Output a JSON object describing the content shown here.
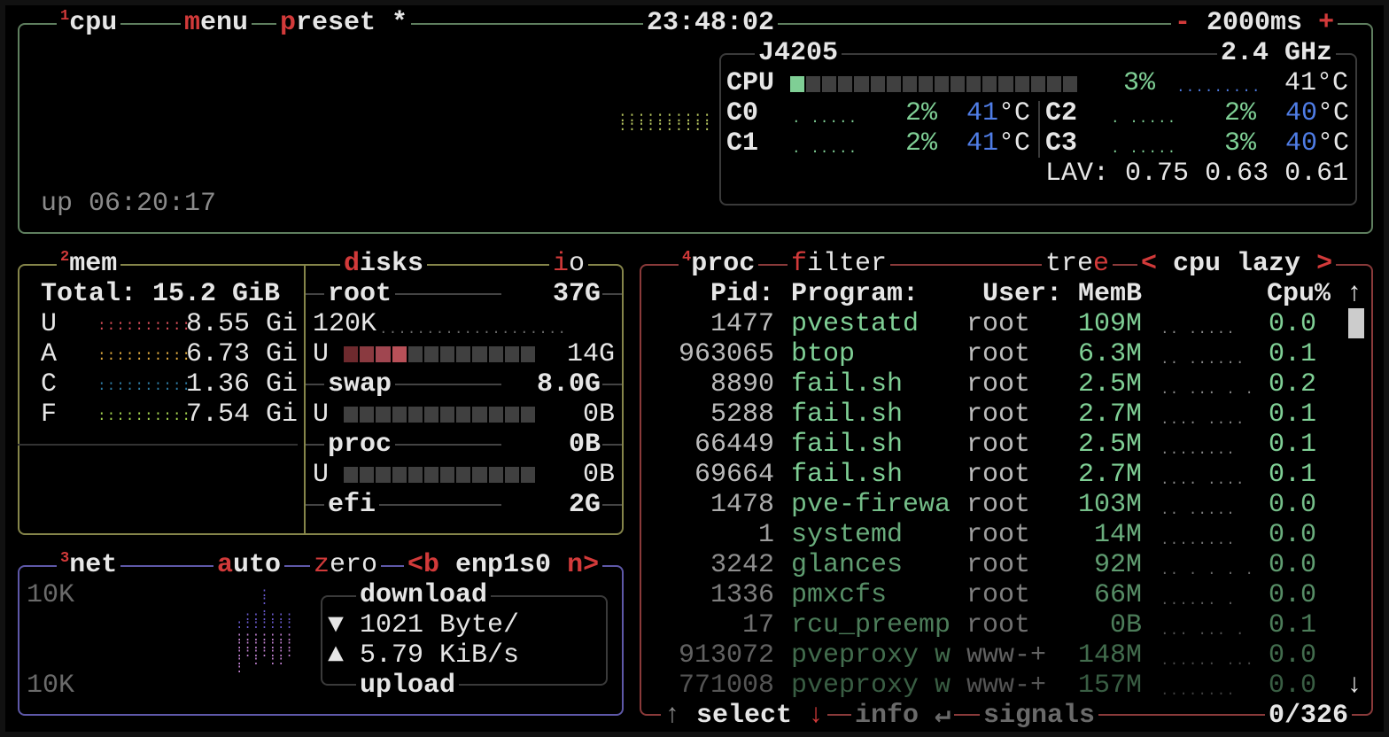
{
  "colors": {
    "cpu_border": "#5f7f5f",
    "mem_border": "#85854a",
    "net_border": "#5e58a8",
    "proc_border": "#8a3a3a",
    "accent": "#d23a3a",
    "green": "#7fcf95",
    "blue": "#4f7de6"
  },
  "cpu_box": {
    "num": "1",
    "title": "cpu",
    "menu_key": "m",
    "menu_rest": "enu",
    "preset_key": "p",
    "preset_rest": "reset *",
    "clock": "23:48:02",
    "minus": "-",
    "interval": "2000ms",
    "plus": "+",
    "uptime": "up 06:20:17",
    "model": "J4205",
    "freq": "2.4 GHz",
    "total": {
      "label": "CPU",
      "percent": "3%",
      "temp": "41°C",
      "usage_fraction": 0.03
    },
    "cores": [
      {
        "label": "C0",
        "percent": "2%",
        "temp_value": "41",
        "temp_unit": "°C"
      },
      {
        "label": "C1",
        "percent": "2%",
        "temp_value": "41",
        "temp_unit": "°C"
      },
      {
        "label": "C2",
        "percent": "2%",
        "temp_value": "40",
        "temp_unit": "°C"
      },
      {
        "label": "C3",
        "percent": "3%",
        "temp_value": "40",
        "temp_unit": "°C"
      }
    ],
    "lav_label": "LAV:",
    "lav": [
      "0.75",
      "0.63",
      "0.61"
    ]
  },
  "mem_box": {
    "num": "2",
    "title": "mem",
    "total": "Total: 15.2 GiB",
    "rows": [
      {
        "label": "U",
        "value": "8.55 Gi",
        "color": "#e0505a"
      },
      {
        "label": "A",
        "value": "6.73 Gi",
        "color": "#e8b040"
      },
      {
        "label": "C",
        "value": "1.36 Gi",
        "color": "#2f7fa8"
      },
      {
        "label": "F",
        "value": "7.54 Gi",
        "color": "#a8d850"
      }
    ],
    "disks_key": "d",
    "disks_rest": "isks",
    "io_key": "i",
    "io_rest": "o",
    "disks": [
      {
        "name": "root",
        "size": "37G",
        "io": "120K",
        "used_label": "U",
        "used": "14G",
        "used_fraction": 0.33
      },
      {
        "name": "swap",
        "size": "8.0G",
        "used_label": "U",
        "used": "0B",
        "used_fraction": 0
      },
      {
        "name": "proc",
        "size": "0B",
        "used_label": "U",
        "used": "0B",
        "used_fraction": 0
      },
      {
        "name": "efi",
        "size": "2G"
      }
    ]
  },
  "net_box": {
    "num": "3",
    "title": "net",
    "auto_key": "a",
    "auto_rest": "uto",
    "zero_key": "z",
    "zero_rest": "ero",
    "prev": "<b",
    "iface": "enp1s0",
    "next": "n>",
    "scale_top": "10K",
    "scale_bottom": "10K",
    "download_label": "download",
    "download_arrow": "▼",
    "download": "1021 Byte/",
    "upload_arrow": "▲",
    "upload": "5.79 KiB/s",
    "upload_label": "upload"
  },
  "proc_box": {
    "num": "4",
    "title": "proc",
    "filter_key": "f",
    "filter_rest": "ilter",
    "tree_rest": "tre",
    "tree_key": "e",
    "sort_prev": "<",
    "sort": "cpu lazy",
    "sort_next": ">",
    "headers": {
      "pid": "Pid:",
      "program": "Program:",
      "user": "User:",
      "mem": "MemB",
      "cpu": "Cpu%"
    },
    "rows": [
      {
        "pid": "1477",
        "program": "pvestatd",
        "user": "root",
        "mem": "109M",
        "cpu": "0.0"
      },
      {
        "pid": "963065",
        "program": "btop",
        "user": "root",
        "mem": "6.3M",
        "cpu": "0.1"
      },
      {
        "pid": "8890",
        "program": "fail.sh",
        "user": "root",
        "mem": "2.5M",
        "cpu": "0.2"
      },
      {
        "pid": "5288",
        "program": "fail.sh",
        "user": "root",
        "mem": "2.7M",
        "cpu": "0.1"
      },
      {
        "pid": "66449",
        "program": "fail.sh",
        "user": "root",
        "mem": "2.5M",
        "cpu": "0.1"
      },
      {
        "pid": "69664",
        "program": "fail.sh",
        "user": "root",
        "mem": "2.7M",
        "cpu": "0.1"
      },
      {
        "pid": "1478",
        "program": "pve-firewa",
        "user": "root",
        "mem": "103M",
        "cpu": "0.0"
      },
      {
        "pid": "1",
        "program": "systemd",
        "user": "root",
        "mem": "14M",
        "cpu": "0.0"
      },
      {
        "pid": "3242",
        "program": "glances",
        "user": "root",
        "mem": "92M",
        "cpu": "0.0"
      },
      {
        "pid": "1336",
        "program": "pmxcfs",
        "user": "root",
        "mem": "66M",
        "cpu": "0.0"
      },
      {
        "pid": "17",
        "program": "rcu_preemp",
        "user": "root",
        "mem": "0B",
        "cpu": "0.1"
      },
      {
        "pid": "913072",
        "program": "pveproxy w",
        "user": "www-+",
        "mem": "148M",
        "cpu": "0.0"
      },
      {
        "pid": "771008",
        "program": "pveproxy w",
        "user": "www-+",
        "mem": "157M",
        "cpu": "0.0"
      }
    ],
    "scroll_up": "↑",
    "scroll_down": "↓",
    "footer": {
      "up": "↑",
      "select": "select",
      "down": "↓",
      "info": "info",
      "enter": "↵",
      "signals": "signals",
      "count": "0/326"
    }
  }
}
